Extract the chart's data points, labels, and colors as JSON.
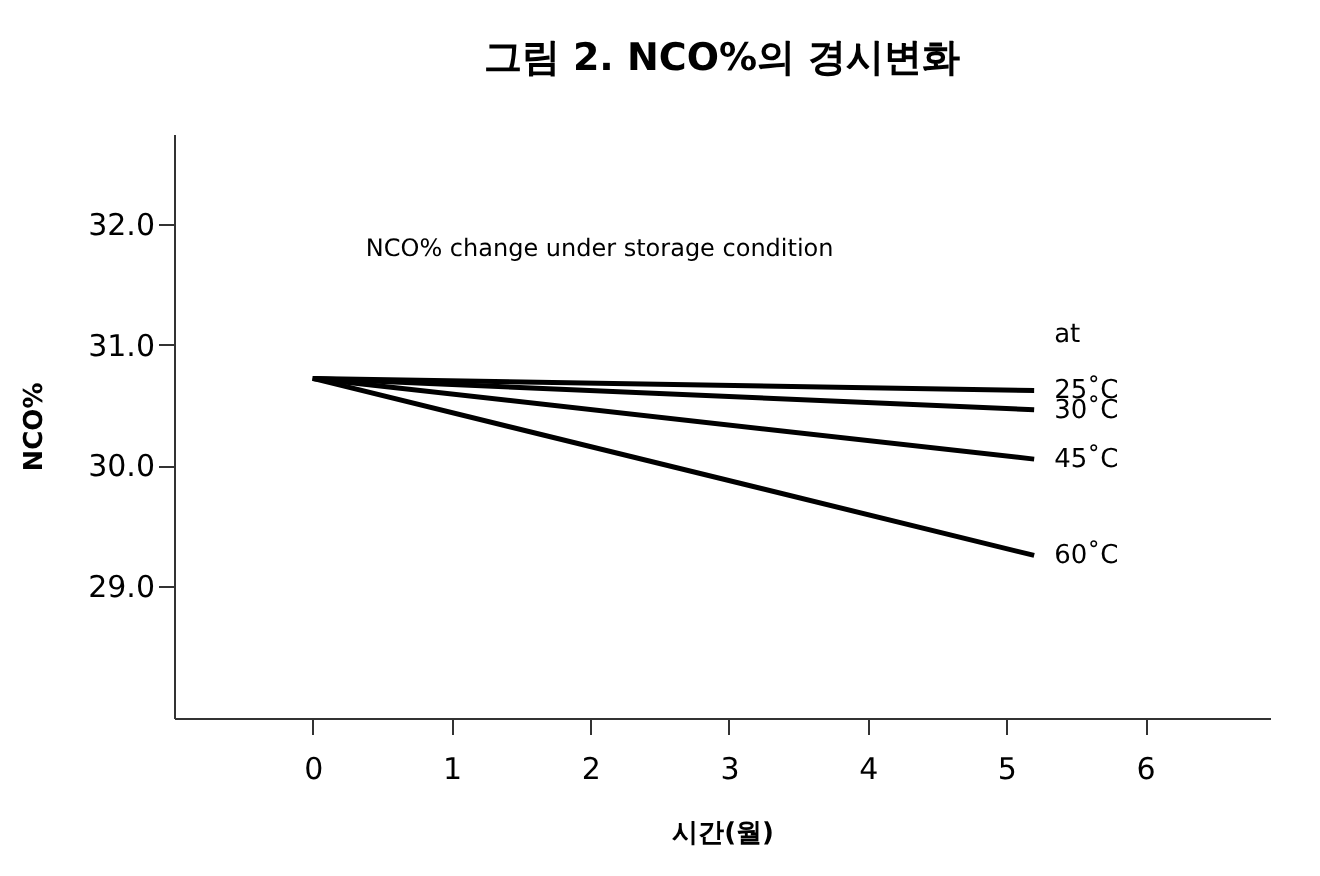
{
  "chart_data": {
    "type": "line",
    "title": "그림 2. NCO%의 경시변화",
    "xlabel": "시간(월)",
    "ylabel": "NCO%",
    "xlim": [
      -1.0,
      6.9
    ],
    "xticks": [
      0,
      1,
      2,
      3,
      4,
      5,
      6
    ],
    "ylim": [
      27.9,
      32.75
    ],
    "yticks": [
      {
        "value": 29,
        "label": "29.0"
      },
      {
        "value": 30,
        "label": "30.0"
      },
      {
        "value": 31,
        "label": "31.0"
      },
      {
        "value": 32,
        "label": "32.0"
      }
    ],
    "x": [
      0,
      5.2
    ],
    "series": [
      {
        "name": "25˚C",
        "color": "#000000",
        "values": [
          30.72,
          30.62
        ]
      },
      {
        "name": "30˚C",
        "color": "#000000",
        "values": [
          30.72,
          30.46
        ]
      },
      {
        "name": "45˚C",
        "color": "#000000",
        "values": [
          30.72,
          30.05
        ]
      },
      {
        "name": "60˚C",
        "color": "#000000",
        "values": [
          30.72,
          29.25
        ]
      }
    ],
    "annotations": [
      "NCO% change under storage condition",
      "at"
    ],
    "grid": false,
    "marker": "none",
    "line_style": "solid"
  }
}
